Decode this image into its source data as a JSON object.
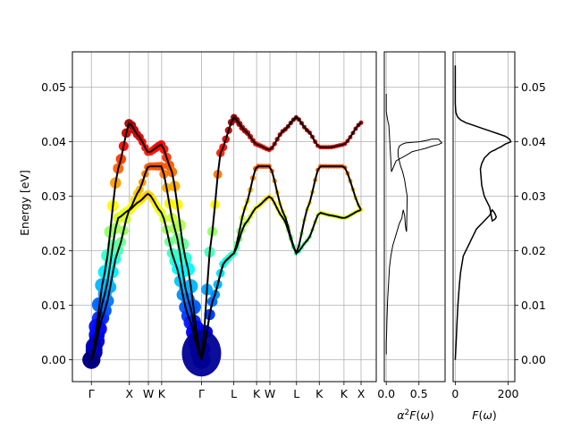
{
  "chart_data": [
    {
      "type": "scatter",
      "name_role": "phonon-dispersion",
      "ylabel": "Energy [eV]",
      "ylim": [
        -0.004,
        0.0565
      ],
      "grid": true,
      "x_ticks": [
        {
          "label": "Γ",
          "k": 0.0
        },
        {
          "label": "X",
          "k": 1.0
        },
        {
          "label": "W",
          "k": 1.5
        },
        {
          "label": "K",
          "k": 1.85
        },
        {
          "label": "Γ",
          "k": 2.9
        },
        {
          "label": "L",
          "k": 3.75
        },
        {
          "label": "K",
          "k": 4.35
        },
        {
          "label": "W",
          "k": 4.7
        },
        {
          "label": "L",
          "k": 5.4
        },
        {
          "label": "K",
          "k": 6.0
        },
        {
          "label": "K",
          "k": 6.65
        },
        {
          "label": "X",
          "k": 7.1
        }
      ],
      "y_ticks": [
        "0.00",
        "0.01",
        "0.02",
        "0.03",
        "0.04",
        "0.05"
      ],
      "y_tick_values": [
        0.0,
        0.01,
        0.02,
        0.03,
        0.04,
        0.05
      ],
      "colormap": "jet",
      "branches": [
        {
          "k": [
            0.0,
            0.35,
            0.7,
            1.0,
            1.25,
            1.5,
            1.85,
            2.2,
            2.55,
            2.9
          ],
          "energy": [
            0.0,
            0.009,
            0.02,
            0.0275,
            0.029,
            0.0305,
            0.027,
            0.018,
            0.008,
            0.0
          ]
        },
        {
          "k": [
            0.0,
            0.35,
            0.7,
            1.0,
            1.25,
            1.5,
            1.85,
            2.2,
            2.55,
            2.9
          ],
          "energy": [
            0.0,
            0.012,
            0.026,
            0.0275,
            0.031,
            0.0355,
            0.0355,
            0.024,
            0.011,
            0.0
          ]
        },
        {
          "k": [
            0.0,
            0.35,
            0.7,
            1.0,
            1.25,
            1.5,
            1.85,
            2.1,
            2.5,
            2.9
          ],
          "energy": [
            0.0,
            0.016,
            0.035,
            0.0435,
            0.041,
            0.038,
            0.0395,
            0.035,
            0.018,
            0.0
          ]
        },
        {
          "k": [
            2.9,
            3.2,
            3.5,
            3.75,
            4.05,
            4.35,
            4.7,
            5.05,
            5.4,
            5.7,
            6.0,
            6.3,
            6.65,
            7.1
          ],
          "energy": [
            0.0,
            0.011,
            0.018,
            0.0195,
            0.025,
            0.028,
            0.03,
            0.026,
            0.0195,
            0.022,
            0.027,
            0.0265,
            0.026,
            0.0275
          ]
        },
        {
          "k": [
            2.9,
            3.2,
            3.5,
            3.75,
            4.05,
            4.35,
            4.7,
            5.05,
            5.4,
            5.7,
            6.0,
            6.3,
            6.65,
            7.1
          ],
          "energy": [
            0.0,
            0.011,
            0.018,
            0.0195,
            0.028,
            0.0355,
            0.0355,
            0.027,
            0.0195,
            0.028,
            0.0355,
            0.0355,
            0.0355,
            0.0275
          ]
        },
        {
          "k": [
            2.9,
            3.15,
            3.4,
            3.75,
            4.05,
            4.35,
            4.7,
            5.05,
            5.4,
            5.7,
            6.0,
            6.3,
            6.65,
            7.1
          ],
          "energy": [
            0.0,
            0.022,
            0.038,
            0.0445,
            0.042,
            0.0395,
            0.0385,
            0.042,
            0.0445,
            0.042,
            0.039,
            0.039,
            0.0395,
            0.0435
          ]
        }
      ]
    },
    {
      "type": "line",
      "name_role": "eliashberg-function",
      "xlabel": "α²F(ω)",
      "xlim": [
        -0.03,
        0.9
      ],
      "ylim": [
        -0.004,
        0.0565
      ],
      "x_ticks": [
        "0.0",
        "0.5"
      ],
      "x_tick_values": [
        0.0,
        0.5
      ],
      "grid": true,
      "x": [
        0.0,
        0.0,
        0.005,
        0.01,
        0.015,
        0.02,
        0.03,
        0.04,
        0.05,
        0.07,
        0.1,
        0.15,
        0.2,
        0.24,
        0.25,
        0.26,
        0.27,
        0.28,
        0.285,
        0.29,
        0.3,
        0.31,
        0.32,
        0.3,
        0.28,
        0.25,
        0.22,
        0.2,
        0.18,
        0.18,
        0.2,
        0.25,
        0.3,
        0.4,
        0.5,
        0.6,
        0.7,
        0.8,
        0.85,
        0.8,
        0.7,
        0.6,
        0.5,
        0.4,
        0.3,
        0.15,
        0.08,
        0.04,
        0.02,
        0.0,
        0.0
      ],
      "energy": [
        0.001,
        0.003,
        0.005,
        0.007,
        0.009,
        0.011,
        0.013,
        0.015,
        0.017,
        0.019,
        0.021,
        0.023,
        0.025,
        0.026,
        0.027,
        0.0275,
        0.027,
        0.0265,
        0.026,
        0.025,
        0.024,
        0.0235,
        0.03,
        0.0315,
        0.033,
        0.0345,
        0.0355,
        0.0365,
        0.0375,
        0.0385,
        0.0392,
        0.0396,
        0.0398,
        0.0399,
        0.04,
        0.0402,
        0.0405,
        0.0405,
        0.0398,
        0.0395,
        0.0392,
        0.0388,
        0.0385,
        0.0382,
        0.0375,
        0.0365,
        0.0345,
        0.043,
        0.044,
        0.0455,
        0.0488
      ]
    },
    {
      "type": "line",
      "name_role": "phonon-dos",
      "xlabel": "F(ω)",
      "xlim": [
        -8,
        225
      ],
      "ylim": [
        -0.004,
        0.0565
      ],
      "x_ticks": [
        "0",
        "200"
      ],
      "x_tick_values": [
        0,
        200
      ],
      "grid": true,
      "x": [
        0,
        2,
        4,
        6,
        8,
        10,
        13,
        16,
        20,
        25,
        30,
        35,
        40,
        50,
        60,
        70,
        80,
        90,
        100,
        110,
        120,
        130,
        135,
        140,
        145,
        150,
        155,
        150,
        140,
        130,
        120,
        110,
        100,
        95,
        100,
        110,
        120,
        130,
        140,
        150,
        160,
        170,
        180,
        190,
        200,
        210,
        205,
        190,
        160,
        130,
        100,
        70,
        40,
        20,
        10,
        5,
        2,
        0,
        0
      ],
      "energy": [
        0.0,
        0.002,
        0.004,
        0.006,
        0.008,
        0.01,
        0.012,
        0.014,
        0.016,
        0.0175,
        0.019,
        0.0195,
        0.02,
        0.021,
        0.022,
        0.023,
        0.024,
        0.0245,
        0.025,
        0.0255,
        0.026,
        0.0265,
        0.027,
        0.0275,
        0.0272,
        0.0268,
        0.0262,
        0.0258,
        0.0255,
        0.028,
        0.029,
        0.03,
        0.032,
        0.035,
        0.036,
        0.037,
        0.0375,
        0.038,
        0.0383,
        0.0385,
        0.0388,
        0.039,
        0.0393,
        0.0396,
        0.0398,
        0.04,
        0.0405,
        0.041,
        0.0415,
        0.042,
        0.0425,
        0.043,
        0.0435,
        0.044,
        0.0445,
        0.045,
        0.0455,
        0.047,
        0.054
      ]
    }
  ]
}
